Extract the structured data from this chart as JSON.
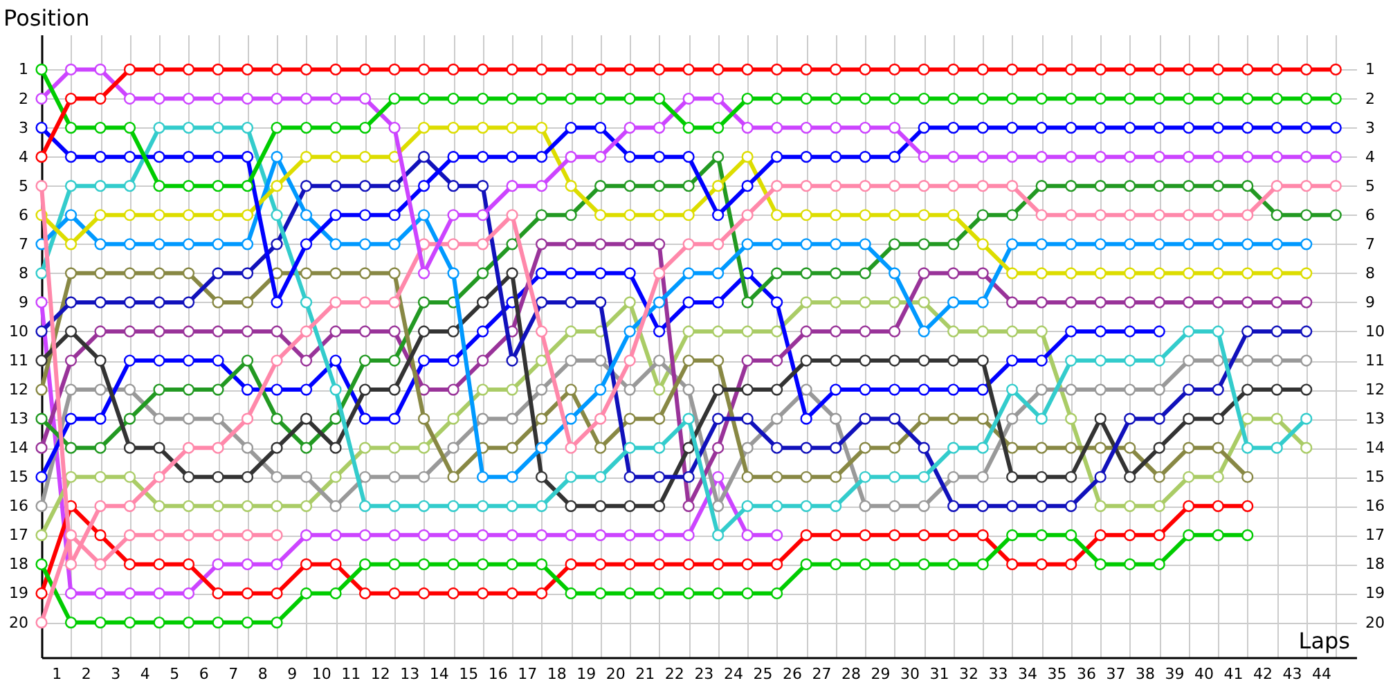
{
  "chart_data": {
    "type": "line",
    "xlabel": "Laps",
    "ylabel": "Position",
    "grid": true,
    "marker": "circle",
    "line_style": "solid",
    "xlim": [
      0,
      44.7
    ],
    "ylim": [
      21.2,
      -0.2
    ],
    "y2lim": [
      21.2,
      -0.2
    ],
    "xticks": [
      {
        "value": 0,
        "label": null
      },
      {
        "value": 0.5,
        "label": "1"
      },
      {
        "value": 1,
        "label": null
      },
      {
        "value": 1.5,
        "label": "2"
      },
      {
        "value": 2,
        "label": null
      },
      {
        "value": 2.5,
        "label": "3"
      },
      {
        "value": 3,
        "label": null
      },
      {
        "value": 3.5,
        "label": "4"
      },
      {
        "value": 4,
        "label": null
      },
      {
        "value": 4.5,
        "label": "5"
      },
      {
        "value": 5,
        "label": null
      },
      {
        "value": 5.5,
        "label": "6"
      },
      {
        "value": 6,
        "label": null
      },
      {
        "value": 6.5,
        "label": "7"
      },
      {
        "value": 7,
        "label": null
      },
      {
        "value": 7.5,
        "label": "8"
      },
      {
        "value": 8,
        "label": null
      },
      {
        "value": 8.5,
        "label": "9"
      },
      {
        "value": 9,
        "label": null
      },
      {
        "value": 9.5,
        "label": "10"
      },
      {
        "value": 10,
        "label": null
      },
      {
        "value": 10.5,
        "label": "11"
      },
      {
        "value": 11,
        "label": null
      },
      {
        "value": 11.5,
        "label": "12"
      },
      {
        "value": 12,
        "label": null
      },
      {
        "value": 12.5,
        "label": "13"
      },
      {
        "value": 13,
        "label": null
      },
      {
        "value": 13.5,
        "label": "14"
      },
      {
        "value": 14,
        "label": null
      },
      {
        "value": 14.5,
        "label": "15"
      },
      {
        "value": 15,
        "label": null
      },
      {
        "value": 15.5,
        "label": "16"
      },
      {
        "value": 16,
        "label": null
      },
      {
        "value": 16.5,
        "label": "17"
      },
      {
        "value": 17,
        "label": null
      },
      {
        "value": 17.5,
        "label": "18"
      },
      {
        "value": 18,
        "label": null
      },
      {
        "value": 18.5,
        "label": "19"
      },
      {
        "value": 19,
        "label": null
      },
      {
        "value": 19.5,
        "label": "20"
      },
      {
        "value": 20,
        "label": null
      },
      {
        "value": 20.5,
        "label": "21"
      },
      {
        "value": 21,
        "label": null
      },
      {
        "value": 21.5,
        "label": "22"
      },
      {
        "value": 22,
        "label": null
      },
      {
        "value": 22.5,
        "label": "23"
      },
      {
        "value": 23,
        "label": null
      },
      {
        "value": 23.5,
        "label": "24"
      },
      {
        "value": 24,
        "label": null
      },
      {
        "value": 24.5,
        "label": "25"
      },
      {
        "value": 25,
        "label": null
      },
      {
        "value": 25.5,
        "label": "26"
      },
      {
        "value": 26,
        "label": null
      },
      {
        "value": 26.5,
        "label": "27"
      },
      {
        "value": 27,
        "label": null
      },
      {
        "value": 27.5,
        "label": "28"
      },
      {
        "value": 28,
        "label": null
      },
      {
        "value": 28.5,
        "label": "29"
      },
      {
        "value": 29,
        "label": null
      },
      {
        "value": 29.5,
        "label": "30"
      },
      {
        "value": 30,
        "label": null
      },
      {
        "value": 30.5,
        "label": "31"
      },
      {
        "value": 31,
        "label": null
      },
      {
        "value": 31.5,
        "label": "32"
      },
      {
        "value": 32,
        "label": null
      },
      {
        "value": 32.5,
        "label": "33"
      },
      {
        "value": 33,
        "label": null
      },
      {
        "value": 33.5,
        "label": "34"
      },
      {
        "value": 34,
        "label": null
      },
      {
        "value": 34.5,
        "label": "35"
      },
      {
        "value": 35,
        "label": null
      },
      {
        "value": 35.5,
        "label": "36"
      },
      {
        "value": 36,
        "label": null
      },
      {
        "value": 36.5,
        "label": "37"
      },
      {
        "value": 37,
        "label": null
      },
      {
        "value": 37.5,
        "label": "38"
      },
      {
        "value": 38,
        "label": null
      },
      {
        "value": 38.5,
        "label": "39"
      },
      {
        "value": 39,
        "label": null
      },
      {
        "value": 39.5,
        "label": "40"
      },
      {
        "value": 40,
        "label": null
      },
      {
        "value": 40.5,
        "label": "41"
      },
      {
        "value": 41,
        "label": null
      },
      {
        "value": 41.5,
        "label": "42"
      },
      {
        "value": 42,
        "label": null
      },
      {
        "value": 42.5,
        "label": "43"
      },
      {
        "value": 43,
        "label": null
      },
      {
        "value": 43.5,
        "label": "44"
      },
      {
        "value": 44,
        "label": null
      }
    ],
    "yticks": [
      1,
      2,
      3,
      4,
      5,
      6,
      7,
      8,
      9,
      10,
      11,
      12,
      13,
      14,
      15,
      16,
      17,
      18,
      19,
      20
    ],
    "y2ticks": [
      1,
      2,
      3,
      4,
      5,
      6,
      7,
      8,
      9,
      10,
      11,
      12,
      13,
      14,
      15,
      16,
      17,
      18,
      19,
      20
    ],
    "x": [
      0,
      1,
      2,
      3,
      4,
      5,
      6,
      7,
      8,
      9,
      10,
      11,
      12,
      13,
      14,
      15,
      16,
      17,
      18,
      19,
      20,
      21,
      22,
      23,
      24,
      25,
      26,
      27,
      28,
      29,
      30,
      31,
      32,
      33,
      34,
      35,
      36,
      37,
      38,
      39,
      40,
      41,
      42,
      43,
      44
    ],
    "series": [
      {
        "color": "#cc44ff",
        "values": [
          9,
          19,
          19,
          19,
          19,
          19,
          18,
          18,
          18,
          17,
          17,
          17,
          17,
          17,
          17,
          17,
          17,
          17,
          17,
          17,
          17,
          17,
          17,
          15,
          17,
          17,
          null,
          null,
          null,
          null,
          null,
          null,
          null,
          null,
          null,
          null,
          null,
          null,
          null,
          null,
          null,
          null,
          null,
          null,
          null
        ]
      },
      {
        "color": "#ff0000",
        "values": [
          19,
          16,
          17,
          18,
          18,
          18,
          19,
          19,
          19,
          18,
          18,
          19,
          19,
          19,
          19,
          19,
          19,
          19,
          18,
          18,
          18,
          18,
          18,
          18,
          18,
          18,
          17,
          17,
          17,
          17,
          17,
          17,
          17,
          18,
          18,
          18,
          17,
          17,
          17,
          16,
          16,
          16,
          null,
          null,
          null
        ]
      },
      {
        "color": "#00cc00",
        "values": [
          18,
          20,
          20,
          20,
          20,
          20,
          20,
          20,
          20,
          19,
          19,
          18,
          18,
          18,
          18,
          18,
          18,
          18,
          19,
          19,
          19,
          19,
          19,
          19,
          19,
          19,
          18,
          18,
          18,
          18,
          18,
          18,
          18,
          17,
          17,
          17,
          18,
          18,
          18,
          17,
          17,
          17,
          null,
          null,
          null
        ]
      },
      {
        "color": "#aacc66",
        "values": [
          17,
          15,
          15,
          15,
          16,
          16,
          16,
          16,
          16,
          16,
          15,
          14,
          14,
          14,
          13,
          12,
          12,
          11,
          10,
          10,
          9,
          12,
          10,
          10,
          10,
          10,
          9,
          9,
          9,
          9,
          9,
          10,
          10,
          10,
          10,
          13,
          16,
          16,
          16,
          15,
          15,
          13,
          13,
          14,
          null
        ]
      },
      {
        "color": "#999999",
        "values": [
          16,
          12,
          12,
          12,
          13,
          13,
          13,
          14,
          15,
          15,
          16,
          15,
          15,
          15,
          14,
          13,
          13,
          12,
          11,
          11,
          12,
          11,
          12,
          16,
          14,
          13,
          12,
          13,
          16,
          16,
          16,
          15,
          15,
          13,
          12,
          12,
          12,
          12,
          12,
          11,
          11,
          11,
          11,
          11,
          null
        ]
      },
      {
        "color": "#0000ff",
        "values": [
          15,
          13,
          13,
          11,
          11,
          11,
          11,
          12,
          12,
          12,
          11,
          13,
          13,
          11,
          11,
          10,
          9,
          8,
          8,
          8,
          8,
          10,
          9,
          9,
          8,
          9,
          13,
          12,
          12,
          12,
          12,
          12,
          12,
          11,
          11,
          10,
          10,
          10,
          10,
          null,
          null,
          null,
          null,
          null,
          null
        ]
      },
      {
        "color": "#993399",
        "values": [
          14,
          11,
          10,
          10,
          10,
          10,
          10,
          10,
          10,
          11,
          10,
          10,
          10,
          12,
          12,
          11,
          10,
          7,
          7,
          7,
          7,
          7,
          16,
          14,
          11,
          11,
          10,
          10,
          10,
          10,
          8,
          8,
          8,
          9,
          9,
          9,
          9,
          9,
          9,
          9,
          9,
          9,
          9,
          9,
          null
        ]
      },
      {
        "color": "#229922",
        "values": [
          13,
          14,
          14,
          13,
          12,
          12,
          12,
          11,
          13,
          14,
          13,
          11,
          11,
          9,
          9,
          8,
          7,
          6,
          6,
          5,
          5,
          5,
          5,
          4,
          9,
          8,
          8,
          8,
          8,
          7,
          7,
          7,
          6,
          6,
          5,
          5,
          5,
          5,
          5,
          5,
          5,
          5,
          6,
          6,
          6
        ]
      },
      {
        "color": "#888844",
        "values": [
          12,
          8,
          8,
          8,
          8,
          8,
          9,
          9,
          8,
          8,
          8,
          8,
          8,
          13,
          15,
          14,
          14,
          13,
          12,
          14,
          13,
          13,
          11,
          11,
          15,
          15,
          15,
          15,
          14,
          14,
          13,
          13,
          13,
          14,
          14,
          14,
          14,
          14,
          15,
          14,
          14,
          15,
          null,
          null,
          null
        ]
      },
      {
        "color": "#333333",
        "values": [
          11,
          10,
          11,
          14,
          14,
          15,
          15,
          15,
          14,
          13,
          14,
          12,
          12,
          10,
          10,
          9,
          8,
          15,
          16,
          16,
          16,
          16,
          14,
          12,
          12,
          12,
          11,
          11,
          11,
          11,
          11,
          11,
          11,
          15,
          15,
          15,
          13,
          15,
          14,
          13,
          13,
          12,
          12,
          12,
          null
        ]
      },
      {
        "color": "#1111bb",
        "values": [
          10,
          9,
          9,
          9,
          9,
          9,
          8,
          8,
          7,
          5,
          5,
          5,
          5,
          4,
          5,
          5,
          11,
          9,
          9,
          9,
          15,
          15,
          15,
          13,
          13,
          14,
          14,
          14,
          13,
          13,
          14,
          16,
          16,
          16,
          16,
          16,
          15,
          13,
          13,
          12,
          12,
          10,
          10,
          10,
          null
        ]
      },
      {
        "color": "#33cccc",
        "values": [
          8,
          5,
          5,
          5,
          3,
          3,
          3,
          3,
          6,
          9,
          12,
          16,
          16,
          16,
          16,
          16,
          16,
          16,
          15,
          15,
          14,
          14,
          13,
          17,
          16,
          16,
          16,
          16,
          15,
          15,
          15,
          14,
          14,
          12,
          13,
          11,
          11,
          11,
          11,
          10,
          10,
          14,
          14,
          13,
          null
        ]
      },
      {
        "color": "#0099ff",
        "values": [
          7,
          6,
          7,
          7,
          7,
          7,
          7,
          7,
          4,
          6,
          7,
          7,
          7,
          6,
          8,
          15,
          15,
          14,
          13,
          12,
          10,
          9,
          8,
          8,
          7,
          7,
          7,
          7,
          7,
          8,
          10,
          9,
          9,
          7,
          7,
          7,
          7,
          7,
          7,
          7,
          7,
          7,
          7,
          7,
          null
        ]
      },
      {
        "color": "#dddd00",
        "values": [
          6,
          7,
          6,
          6,
          6,
          6,
          6,
          6,
          5,
          4,
          4,
          4,
          4,
          3,
          3,
          3,
          3,
          3,
          5,
          6,
          6,
          6,
          6,
          5,
          4,
          6,
          6,
          6,
          6,
          6,
          6,
          6,
          7,
          8,
          8,
          8,
          8,
          8,
          8,
          8,
          8,
          8,
          8,
          8,
          null
        ]
      },
      {
        "color": "#ff88aa",
        "values": [
          5,
          18,
          16,
          16,
          15,
          14,
          14,
          13,
          11,
          10,
          9,
          9,
          9,
          7,
          7,
          7,
          6,
          10,
          14,
          13,
          11,
          8,
          7,
          7,
          6,
          5,
          5,
          5,
          5,
          5,
          5,
          5,
          5,
          5,
          6,
          6,
          6,
          6,
          6,
          6,
          6,
          6,
          5,
          5,
          5
        ]
      },
      {
        "color": "#0000ff",
        "values": [
          3,
          4,
          4,
          4,
          4,
          4,
          4,
          4,
          9,
          7,
          6,
          6,
          6,
          5,
          4,
          4,
          4,
          4,
          3,
          3,
          4,
          4,
          4,
          6,
          5,
          4,
          4,
          4,
          4,
          4,
          3,
          3,
          3,
          3,
          3,
          3,
          3,
          3,
          3,
          3,
          3,
          3,
          3,
          3,
          3
        ]
      },
      {
        "color": "#cc44ff",
        "values": [
          2,
          1,
          1,
          2,
          2,
          2,
          2,
          2,
          2,
          2,
          2,
          2,
          3,
          8,
          6,
          6,
          5,
          5,
          4,
          4,
          3,
          3,
          2,
          2,
          3,
          3,
          3,
          3,
          3,
          3,
          4,
          4,
          4,
          4,
          4,
          4,
          4,
          4,
          4,
          4,
          4,
          4,
          4,
          4,
          4
        ]
      },
      {
        "color": "#00cc00",
        "values": [
          1,
          3,
          3,
          3,
          5,
          5,
          5,
          5,
          3,
          3,
          3,
          3,
          2,
          2,
          2,
          2,
          2,
          2,
          2,
          2,
          2,
          2,
          3,
          3,
          2,
          2,
          2,
          2,
          2,
          2,
          2,
          2,
          2,
          2,
          2,
          2,
          2,
          2,
          2,
          2,
          2,
          2,
          2,
          2,
          2
        ]
      },
      {
        "color": "#ff0000",
        "values": [
          4,
          2,
          2,
          1,
          1,
          1,
          1,
          1,
          1,
          1,
          1,
          1,
          1,
          1,
          1,
          1,
          1,
          1,
          1,
          1,
          1,
          1,
          1,
          1,
          1,
          1,
          1,
          1,
          1,
          1,
          1,
          1,
          1,
          1,
          1,
          1,
          1,
          1,
          1,
          1,
          1,
          1,
          1,
          1,
          1
        ]
      },
      {
        "color": "#ff88aa",
        "values": [
          20,
          17,
          18,
          17,
          17,
          17,
          17,
          17,
          17,
          null,
          null,
          null,
          null,
          null,
          null,
          null,
          null,
          null,
          null,
          null,
          null,
          null,
          null,
          null,
          null,
          null,
          null,
          null,
          null,
          null,
          null,
          null,
          null,
          null,
          null,
          null,
          null,
          null,
          null,
          null,
          null,
          null,
          null,
          null,
          null
        ]
      }
    ]
  }
}
